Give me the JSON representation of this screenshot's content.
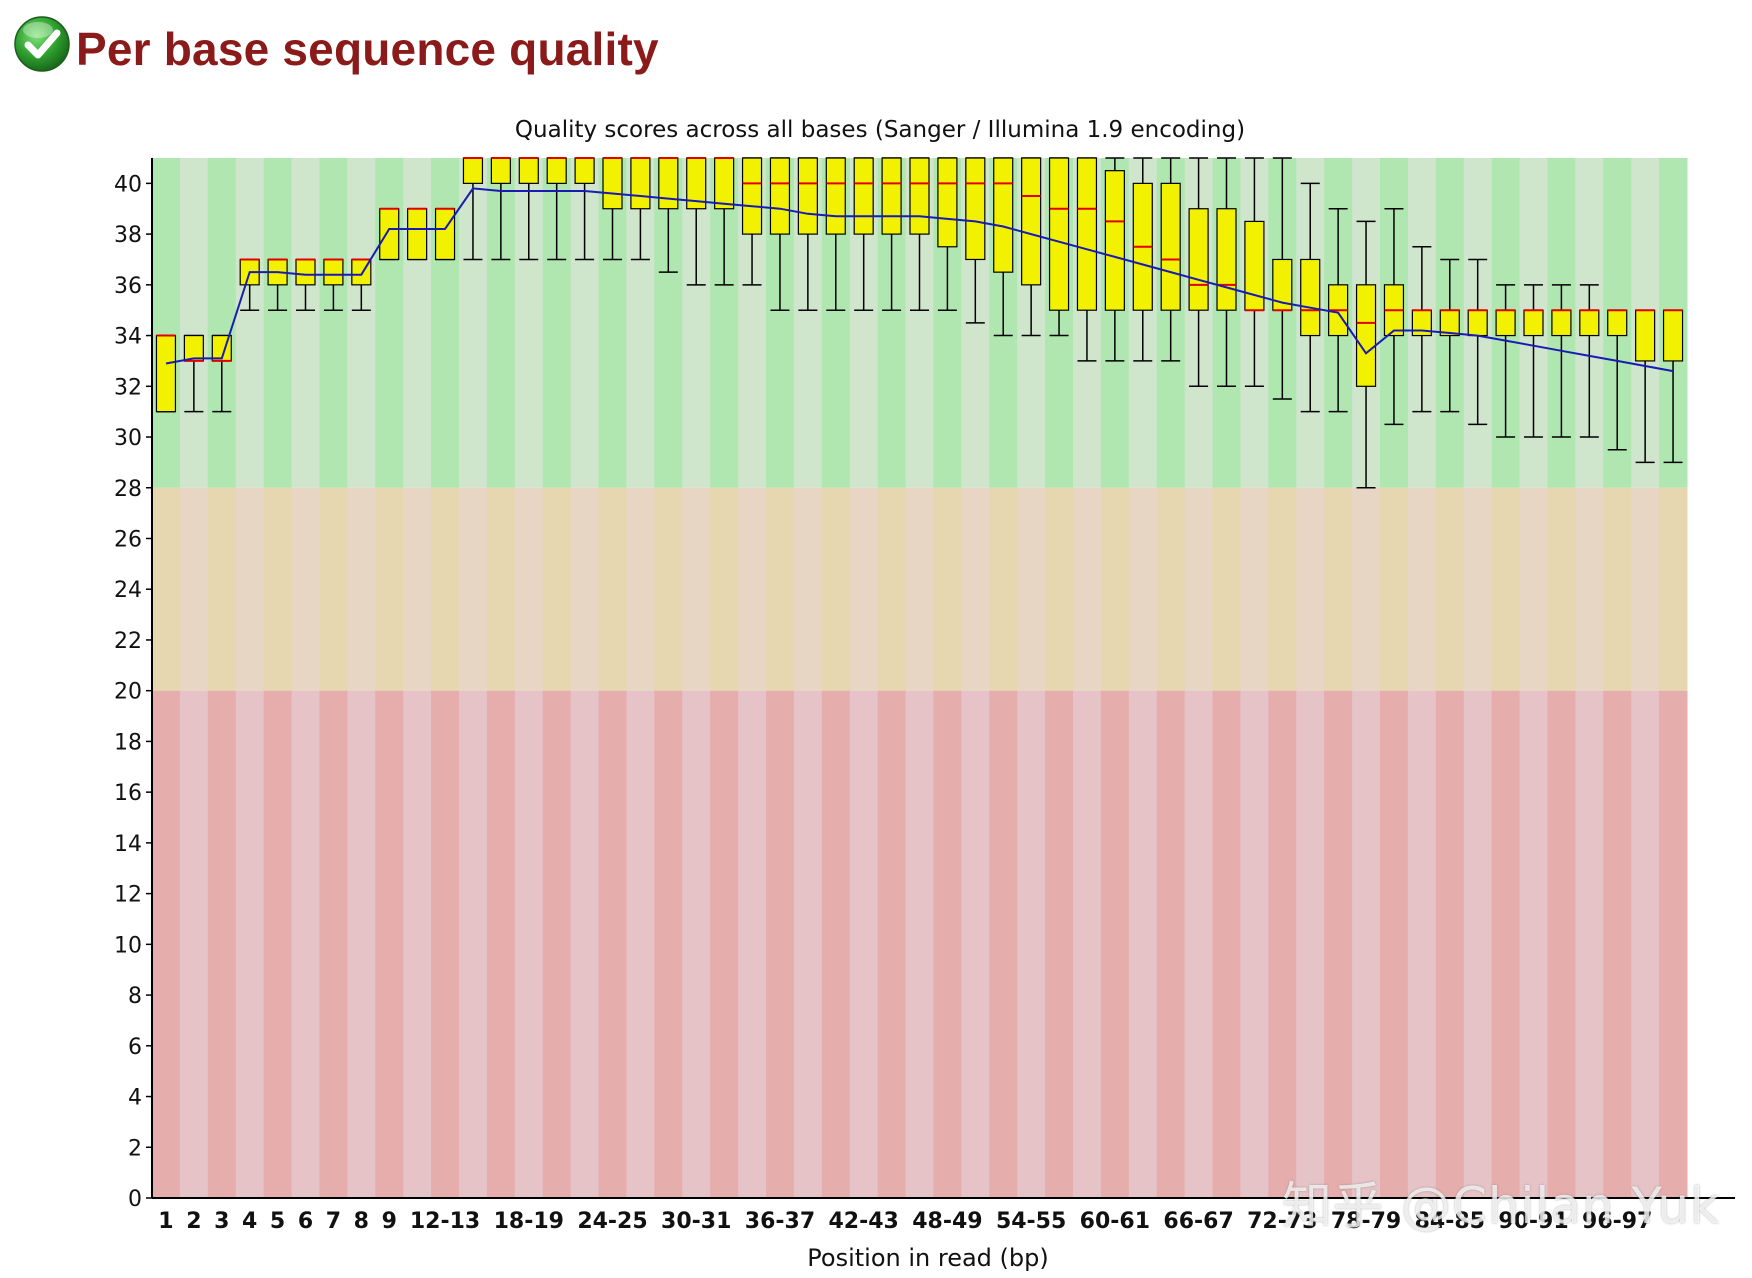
{
  "header": {
    "title": "Per base sequence quality",
    "status_icon": "check-circle-icon",
    "status": "pass"
  },
  "watermark": "知乎 @Chilan Yuk",
  "colors": {
    "title": "#8b1a1a",
    "good_zone_a": "#b0e6b0",
    "good_zone_b": "#cfe5cc",
    "warn_zone_a": "#e6d7b0",
    "warn_zone_b": "#e8d6c4",
    "bad_zone_a": "#e6adad",
    "bad_zone_b": "#e6c3c7",
    "box_fill": "#f2f200",
    "median": "#e00000",
    "mean_line": "#1a1ab4",
    "whisker": "#000000"
  },
  "chart_data": {
    "type": "boxplot",
    "title": "Quality scores across all bases (Sanger / Illumina 1.9 encoding)",
    "xlabel": "Position in read (bp)",
    "ylabel": "",
    "ylim": [
      0,
      41
    ],
    "yticks": [
      0,
      2,
      4,
      6,
      8,
      10,
      12,
      14,
      16,
      18,
      20,
      22,
      24,
      26,
      28,
      30,
      32,
      34,
      36,
      38,
      40
    ],
    "zones": [
      {
        "name": "good",
        "from": 28,
        "to": 41
      },
      {
        "name": "warning",
        "from": 20,
        "to": 28
      },
      {
        "name": "poor",
        "from": 0,
        "to": 20
      }
    ],
    "categories": [
      "1",
      "2",
      "3",
      "4",
      "5",
      "6",
      "7",
      "8",
      "9",
      "10-11",
      "12-13",
      "14-15",
      "16-17",
      "18-19",
      "20-21",
      "22-23",
      "24-25",
      "26-27",
      "28-29",
      "30-31",
      "32-33",
      "34-35",
      "36-37",
      "38-39",
      "40-41",
      "42-43",
      "44-45",
      "46-47",
      "48-49",
      "50-51",
      "52-53",
      "54-55",
      "56-57",
      "58-59",
      "60-61",
      "62-63",
      "64-65",
      "66-67",
      "68-69",
      "70-71",
      "72-73",
      "74-75",
      "76-77",
      "78-79",
      "80-81",
      "82-83",
      "84-85",
      "86-87",
      "88-89",
      "90-91",
      "92-93",
      "94-95",
      "96-97",
      "98-99",
      "100-101"
    ],
    "tick_labels": [
      "1",
      "2",
      "3",
      "4",
      "5",
      "6",
      "7",
      "8",
      "9",
      "",
      "12-13",
      "",
      "",
      "18-19",
      "",
      "",
      "24-25",
      "",
      "",
      "30-31",
      "",
      "",
      "36-37",
      "",
      "",
      "42-43",
      "",
      "",
      "48-49",
      "",
      "",
      "54-55",
      "",
      "",
      "60-61",
      "",
      "",
      "66-67",
      "",
      "",
      "72-73",
      "",
      "",
      "78-79",
      "",
      "",
      "84-85",
      "",
      "",
      "90-91",
      "",
      "",
      "96-97",
      "",
      ""
    ],
    "series": [
      {
        "name": "q1",
        "values": [
          31,
          33,
          33,
          36,
          36,
          36,
          36,
          36,
          37,
          37,
          37,
          40,
          40,
          40,
          40,
          40,
          39,
          39,
          39,
          39,
          39,
          38,
          38,
          38,
          38,
          38,
          38,
          38,
          37.5,
          37,
          36.5,
          36,
          35,
          35,
          35,
          35,
          35,
          35,
          35,
          35,
          35,
          34,
          34,
          32,
          34,
          34,
          34,
          34,
          34,
          34,
          34,
          34,
          34,
          33,
          33
        ]
      },
      {
        "name": "q3",
        "values": [
          34,
          34,
          34,
          37,
          37,
          37,
          37,
          37,
          39,
          39,
          39,
          41,
          41,
          41,
          41,
          41,
          41,
          41,
          41,
          41,
          41,
          41,
          41,
          41,
          41,
          41,
          41,
          41,
          41,
          41,
          41,
          41,
          41,
          41,
          40.5,
          40,
          40,
          39,
          39,
          38.5,
          37,
          37,
          36,
          36,
          36,
          35,
          35,
          35,
          35,
          35,
          35,
          35,
          35,
          35,
          35
        ]
      },
      {
        "name": "median",
        "values": [
          34,
          33,
          33,
          37,
          37,
          37,
          37,
          37,
          39,
          39,
          39,
          41,
          41,
          41,
          41,
          41,
          41,
          41,
          41,
          41,
          41,
          40,
          40,
          40,
          40,
          40,
          40,
          40,
          40,
          40,
          40,
          39.5,
          39,
          39,
          38.5,
          37.5,
          37,
          36,
          36,
          35,
          35,
          35,
          35,
          34.5,
          35,
          35,
          35,
          35,
          35,
          35,
          35,
          35,
          35,
          35,
          35
        ]
      },
      {
        "name": "whisker_low",
        "values": [
          31,
          31,
          31,
          35,
          35,
          35,
          35,
          35,
          37,
          37,
          37,
          37,
          37,
          37,
          37,
          37,
          37,
          37,
          36.5,
          36,
          36,
          36,
          35,
          35,
          35,
          35,
          35,
          35,
          35,
          34.5,
          34,
          34,
          34,
          33,
          33,
          33,
          33,
          32,
          32,
          32,
          31.5,
          31,
          31,
          28,
          30.5,
          31,
          31,
          30.5,
          30,
          30,
          30,
          30,
          29.5,
          29,
          29
        ]
      },
      {
        "name": "whisker_high",
        "values": [
          34,
          34,
          34,
          37,
          37,
          37,
          37,
          37,
          39,
          39,
          39,
          41,
          41,
          41,
          41,
          41,
          41,
          41,
          41,
          41,
          41,
          41,
          41,
          41,
          41,
          41,
          41,
          41,
          41,
          41,
          41,
          41,
          41,
          41,
          41,
          41,
          41,
          41,
          41,
          41,
          41,
          40,
          39,
          38.5,
          39,
          37.5,
          37,
          37,
          36,
          36,
          36,
          36,
          35,
          35,
          35
        ]
      },
      {
        "name": "mean",
        "values": [
          32.9,
          33.1,
          33.1,
          36.5,
          36.5,
          36.4,
          36.4,
          36.4,
          38.2,
          38.2,
          38.2,
          39.8,
          39.7,
          39.7,
          39.7,
          39.7,
          39.6,
          39.5,
          39.4,
          39.3,
          39.2,
          39.1,
          39.0,
          38.8,
          38.7,
          38.7,
          38.7,
          38.7,
          38.6,
          38.5,
          38.3,
          38.0,
          37.7,
          37.4,
          37.1,
          36.8,
          36.5,
          36.2,
          35.9,
          35.6,
          35.3,
          35.1,
          34.9,
          33.3,
          34.2,
          34.2,
          34.1,
          34.0,
          33.8,
          33.6,
          33.4,
          33.2,
          33.0,
          32.8,
          32.6
        ]
      }
    ]
  }
}
